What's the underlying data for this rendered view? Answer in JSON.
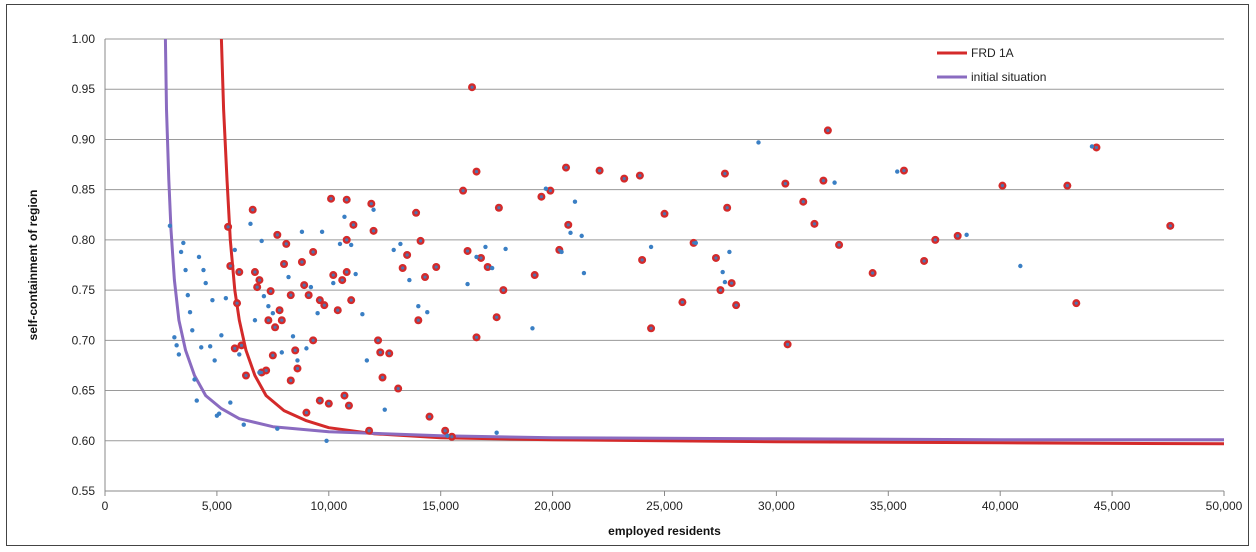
{
  "chart_data": {
    "type": "scatter",
    "xlabel": "employed residents",
    "ylabel": "self-containment of region",
    "xlim": [
      0,
      50000
    ],
    "ylim": [
      0.55,
      1.0
    ],
    "x_ticks": [
      0,
      5000,
      10000,
      15000,
      20000,
      25000,
      30000,
      35000,
      40000,
      45000,
      50000
    ],
    "x_tick_labels": [
      "0",
      "5,000",
      "10,000",
      "15,000",
      "20,000",
      "25,000",
      "30,000",
      "35,000",
      "40,000",
      "45,000",
      "50,000"
    ],
    "y_ticks": [
      0.55,
      0.6,
      0.65,
      0.7,
      0.75,
      0.8,
      0.85,
      0.9,
      0.95,
      1.0
    ],
    "y_tick_labels": [
      "0.55",
      "0.60",
      "0.65",
      "0.70",
      "0.75",
      "0.80",
      "0.85",
      "0.90",
      "0.95",
      "1.00"
    ],
    "grid": "horizontal",
    "legend_position": "top-right",
    "colors": {
      "frd": "#d42a2a",
      "initial": "#8a6bc0",
      "blue_points": "#3a7fc4",
      "grid": "#9a9a9a"
    },
    "series": [
      {
        "name": "FRD 1A",
        "kind": "line",
        "points": [
          [
            5200,
            1.0
          ],
          [
            5300,
            0.93
          ],
          [
            5450,
            0.86
          ],
          [
            5600,
            0.8
          ],
          [
            5800,
            0.75
          ],
          [
            6000,
            0.72
          ],
          [
            6300,
            0.69
          ],
          [
            6700,
            0.665
          ],
          [
            7200,
            0.645
          ],
          [
            8000,
            0.63
          ],
          [
            9000,
            0.62
          ],
          [
            10000,
            0.613
          ],
          [
            12000,
            0.607
          ],
          [
            15000,
            0.603
          ],
          [
            20000,
            0.601
          ],
          [
            30000,
            0.599
          ],
          [
            40000,
            0.598
          ],
          [
            50000,
            0.597
          ]
        ]
      },
      {
        "name": "initial situation",
        "kind": "line",
        "points": [
          [
            2700,
            1.0
          ],
          [
            2750,
            0.93
          ],
          [
            2850,
            0.86
          ],
          [
            2950,
            0.81
          ],
          [
            3100,
            0.76
          ],
          [
            3300,
            0.72
          ],
          [
            3600,
            0.69
          ],
          [
            4000,
            0.665
          ],
          [
            4500,
            0.645
          ],
          [
            5200,
            0.632
          ],
          [
            6000,
            0.622
          ],
          [
            7500,
            0.614
          ],
          [
            10000,
            0.609
          ],
          [
            15000,
            0.605
          ],
          [
            20000,
            0.603
          ],
          [
            30000,
            0.602
          ],
          [
            40000,
            0.601
          ],
          [
            50000,
            0.601
          ]
        ]
      }
    ],
    "red_points": [
      [
        5500,
        0.813
      ],
      [
        5600,
        0.774
      ],
      [
        5800,
        0.692
      ],
      [
        5900,
        0.737
      ],
      [
        6000,
        0.768
      ],
      [
        6100,
        0.695
      ],
      [
        6300,
        0.665
      ],
      [
        6600,
        0.83
      ],
      [
        6700,
        0.768
      ],
      [
        6800,
        0.753
      ],
      [
        6900,
        0.76
      ],
      [
        7000,
        0.668
      ],
      [
        7200,
        0.67
      ],
      [
        7300,
        0.72
      ],
      [
        7400,
        0.749
      ],
      [
        7500,
        0.685
      ],
      [
        7600,
        0.713
      ],
      [
        7700,
        0.805
      ],
      [
        7800,
        0.73
      ],
      [
        7900,
        0.72
      ],
      [
        8000,
        0.776
      ],
      [
        8100,
        0.796
      ],
      [
        8300,
        0.745
      ],
      [
        8300,
        0.66
      ],
      [
        8500,
        0.69
      ],
      [
        8600,
        0.672
      ],
      [
        8800,
        0.778
      ],
      [
        8900,
        0.755
      ],
      [
        9000,
        0.628
      ],
      [
        9100,
        0.745
      ],
      [
        9300,
        0.7
      ],
      [
        9300,
        0.788
      ],
      [
        9600,
        0.74
      ],
      [
        9600,
        0.64
      ],
      [
        9800,
        0.735
      ],
      [
        10000,
        0.637
      ],
      [
        10100,
        0.841
      ],
      [
        10200,
        0.765
      ],
      [
        10400,
        0.73
      ],
      [
        10600,
        0.76
      ],
      [
        10700,
        0.645
      ],
      [
        10800,
        0.84
      ],
      [
        10800,
        0.8
      ],
      [
        10800,
        0.768
      ],
      [
        10900,
        0.635
      ],
      [
        11000,
        0.74
      ],
      [
        11100,
        0.815
      ],
      [
        11800,
        0.61
      ],
      [
        11900,
        0.836
      ],
      [
        12000,
        0.809
      ],
      [
        12200,
        0.7
      ],
      [
        12300,
        0.688
      ],
      [
        12400,
        0.663
      ],
      [
        12700,
        0.687
      ],
      [
        13100,
        0.652
      ],
      [
        13300,
        0.772
      ],
      [
        13500,
        0.785
      ],
      [
        13900,
        0.827
      ],
      [
        14000,
        0.72
      ],
      [
        14100,
        0.799
      ],
      [
        14300,
        0.763
      ],
      [
        14500,
        0.624
      ],
      [
        14800,
        0.773
      ],
      [
        15200,
        0.61
      ],
      [
        15500,
        0.604
      ],
      [
        16000,
        0.849
      ],
      [
        16200,
        0.789
      ],
      [
        16400,
        0.952
      ],
      [
        16600,
        0.868
      ],
      [
        16600,
        0.703
      ],
      [
        16800,
        0.782
      ],
      [
        17100,
        0.773
      ],
      [
        17500,
        0.723
      ],
      [
        17600,
        0.832
      ],
      [
        17800,
        0.75
      ],
      [
        19200,
        0.765
      ],
      [
        19500,
        0.843
      ],
      [
        19900,
        0.849
      ],
      [
        20300,
        0.79
      ],
      [
        20600,
        0.872
      ],
      [
        20700,
        0.815
      ],
      [
        22100,
        0.869
      ],
      [
        23200,
        0.861
      ],
      [
        23900,
        0.864
      ],
      [
        24000,
        0.78
      ],
      [
        24400,
        0.712
      ],
      [
        25000,
        0.826
      ],
      [
        25800,
        0.738
      ],
      [
        26300,
        0.797
      ],
      [
        27300,
        0.782
      ],
      [
        27500,
        0.75
      ],
      [
        27700,
        0.866
      ],
      [
        27800,
        0.832
      ],
      [
        28000,
        0.757
      ],
      [
        28200,
        0.735
      ],
      [
        30400,
        0.856
      ],
      [
        30500,
        0.696
      ],
      [
        31200,
        0.838
      ],
      [
        31700,
        0.816
      ],
      [
        32100,
        0.859
      ],
      [
        32300,
        0.909
      ],
      [
        32800,
        0.795
      ],
      [
        34300,
        0.767
      ],
      [
        35700,
        0.869
      ],
      [
        36600,
        0.779
      ],
      [
        37100,
        0.8
      ],
      [
        38100,
        0.804
      ],
      [
        40100,
        0.854
      ],
      [
        43000,
        0.854
      ],
      [
        43400,
        0.737
      ],
      [
        44300,
        0.892
      ],
      [
        47600,
        0.814
      ]
    ],
    "blue_points": [
      [
        2900,
        0.814
      ],
      [
        3100,
        0.703
      ],
      [
        3200,
        0.695
      ],
      [
        3300,
        0.686
      ],
      [
        3400,
        0.788
      ],
      [
        3500,
        0.797
      ],
      [
        3600,
        0.77
      ],
      [
        3700,
        0.745
      ],
      [
        3800,
        0.728
      ],
      [
        3900,
        0.71
      ],
      [
        4000,
        0.661
      ],
      [
        4100,
        0.64
      ],
      [
        4200,
        0.783
      ],
      [
        4300,
        0.693
      ],
      [
        4400,
        0.77
      ],
      [
        4500,
        0.757
      ],
      [
        4700,
        0.694
      ],
      [
        4800,
        0.74
      ],
      [
        4900,
        0.68
      ],
      [
        5000,
        0.625
      ],
      [
        5100,
        0.627
      ],
      [
        5200,
        0.705
      ],
      [
        5400,
        0.742
      ],
      [
        5600,
        0.638
      ],
      [
        5800,
        0.79
      ],
      [
        6000,
        0.686
      ],
      [
        6200,
        0.616
      ],
      [
        6500,
        0.816
      ],
      [
        6700,
        0.72
      ],
      [
        6900,
        0.668
      ],
      [
        7000,
        0.799
      ],
      [
        7100,
        0.744
      ],
      [
        7300,
        0.734
      ],
      [
        7500,
        0.727
      ],
      [
        7700,
        0.612
      ],
      [
        7900,
        0.688
      ],
      [
        8200,
        0.763
      ],
      [
        8400,
        0.704
      ],
      [
        8600,
        0.68
      ],
      [
        8800,
        0.808
      ],
      [
        9000,
        0.692
      ],
      [
        9200,
        0.753
      ],
      [
        9500,
        0.727
      ],
      [
        9700,
        0.808
      ],
      [
        9900,
        0.6
      ],
      [
        10200,
        0.757
      ],
      [
        10500,
        0.796
      ],
      [
        10700,
        0.823
      ],
      [
        11000,
        0.795
      ],
      [
        11200,
        0.766
      ],
      [
        11500,
        0.726
      ],
      [
        11700,
        0.68
      ],
      [
        12000,
        0.83
      ],
      [
        12500,
        0.631
      ],
      [
        12900,
        0.79
      ],
      [
        13200,
        0.796
      ],
      [
        13600,
        0.76
      ],
      [
        14000,
        0.734
      ],
      [
        14400,
        0.728
      ],
      [
        15300,
        0.605
      ],
      [
        16200,
        0.756
      ],
      [
        16600,
        0.783
      ],
      [
        17000,
        0.793
      ],
      [
        17300,
        0.772
      ],
      [
        17500,
        0.608
      ],
      [
        17900,
        0.791
      ],
      [
        19100,
        0.712
      ],
      [
        19700,
        0.851
      ],
      [
        20400,
        0.788
      ],
      [
        20800,
        0.807
      ],
      [
        21000,
        0.838
      ],
      [
        21300,
        0.804
      ],
      [
        21400,
        0.767
      ],
      [
        24400,
        0.793
      ],
      [
        26400,
        0.797
      ],
      [
        27600,
        0.768
      ],
      [
        27700,
        0.758
      ],
      [
        27900,
        0.788
      ],
      [
        29200,
        0.897
      ],
      [
        32600,
        0.857
      ],
      [
        35400,
        0.868
      ],
      [
        38500,
        0.805
      ],
      [
        40900,
        0.774
      ],
      [
        44100,
        0.893
      ]
    ]
  }
}
